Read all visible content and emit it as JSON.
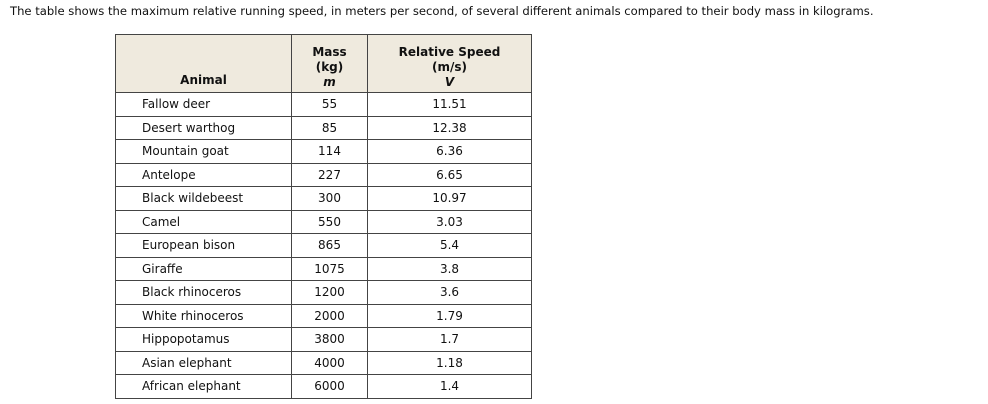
{
  "intro": "The table shows the maximum relative running speed, in meters per second, of several different animals compared to their body mass in kilograms.",
  "table": {
    "header": [
      [
        "Animal"
      ],
      [
        "Mass",
        "(kg)",
        "m"
      ],
      [
        "Relative Speed",
        "(m/s)",
        "V"
      ]
    ],
    "rows": [
      [
        "Fallow deer",
        "55",
        "11.51"
      ],
      [
        "Desert warthog",
        "85",
        "12.38"
      ],
      [
        "Mountain goat",
        "114",
        "6.36"
      ],
      [
        "Antelope",
        "227",
        "6.65"
      ],
      [
        "Black wildebeest",
        "300",
        "10.97"
      ],
      [
        "Camel",
        "550",
        "3.03"
      ],
      [
        "European bison",
        "865",
        "5.4"
      ],
      [
        "Giraffe",
        "1075",
        "3.8"
      ],
      [
        "Black rhinoceros",
        "1200",
        "3.6"
      ],
      [
        "White rhinoceros",
        "2000",
        "1.79"
      ],
      [
        "Hippopotamus",
        "3800",
        "1.7"
      ],
      [
        "Asian elephant",
        "4000",
        "1.18"
      ],
      [
        "African elephant",
        "6000",
        "1.4"
      ]
    ]
  }
}
